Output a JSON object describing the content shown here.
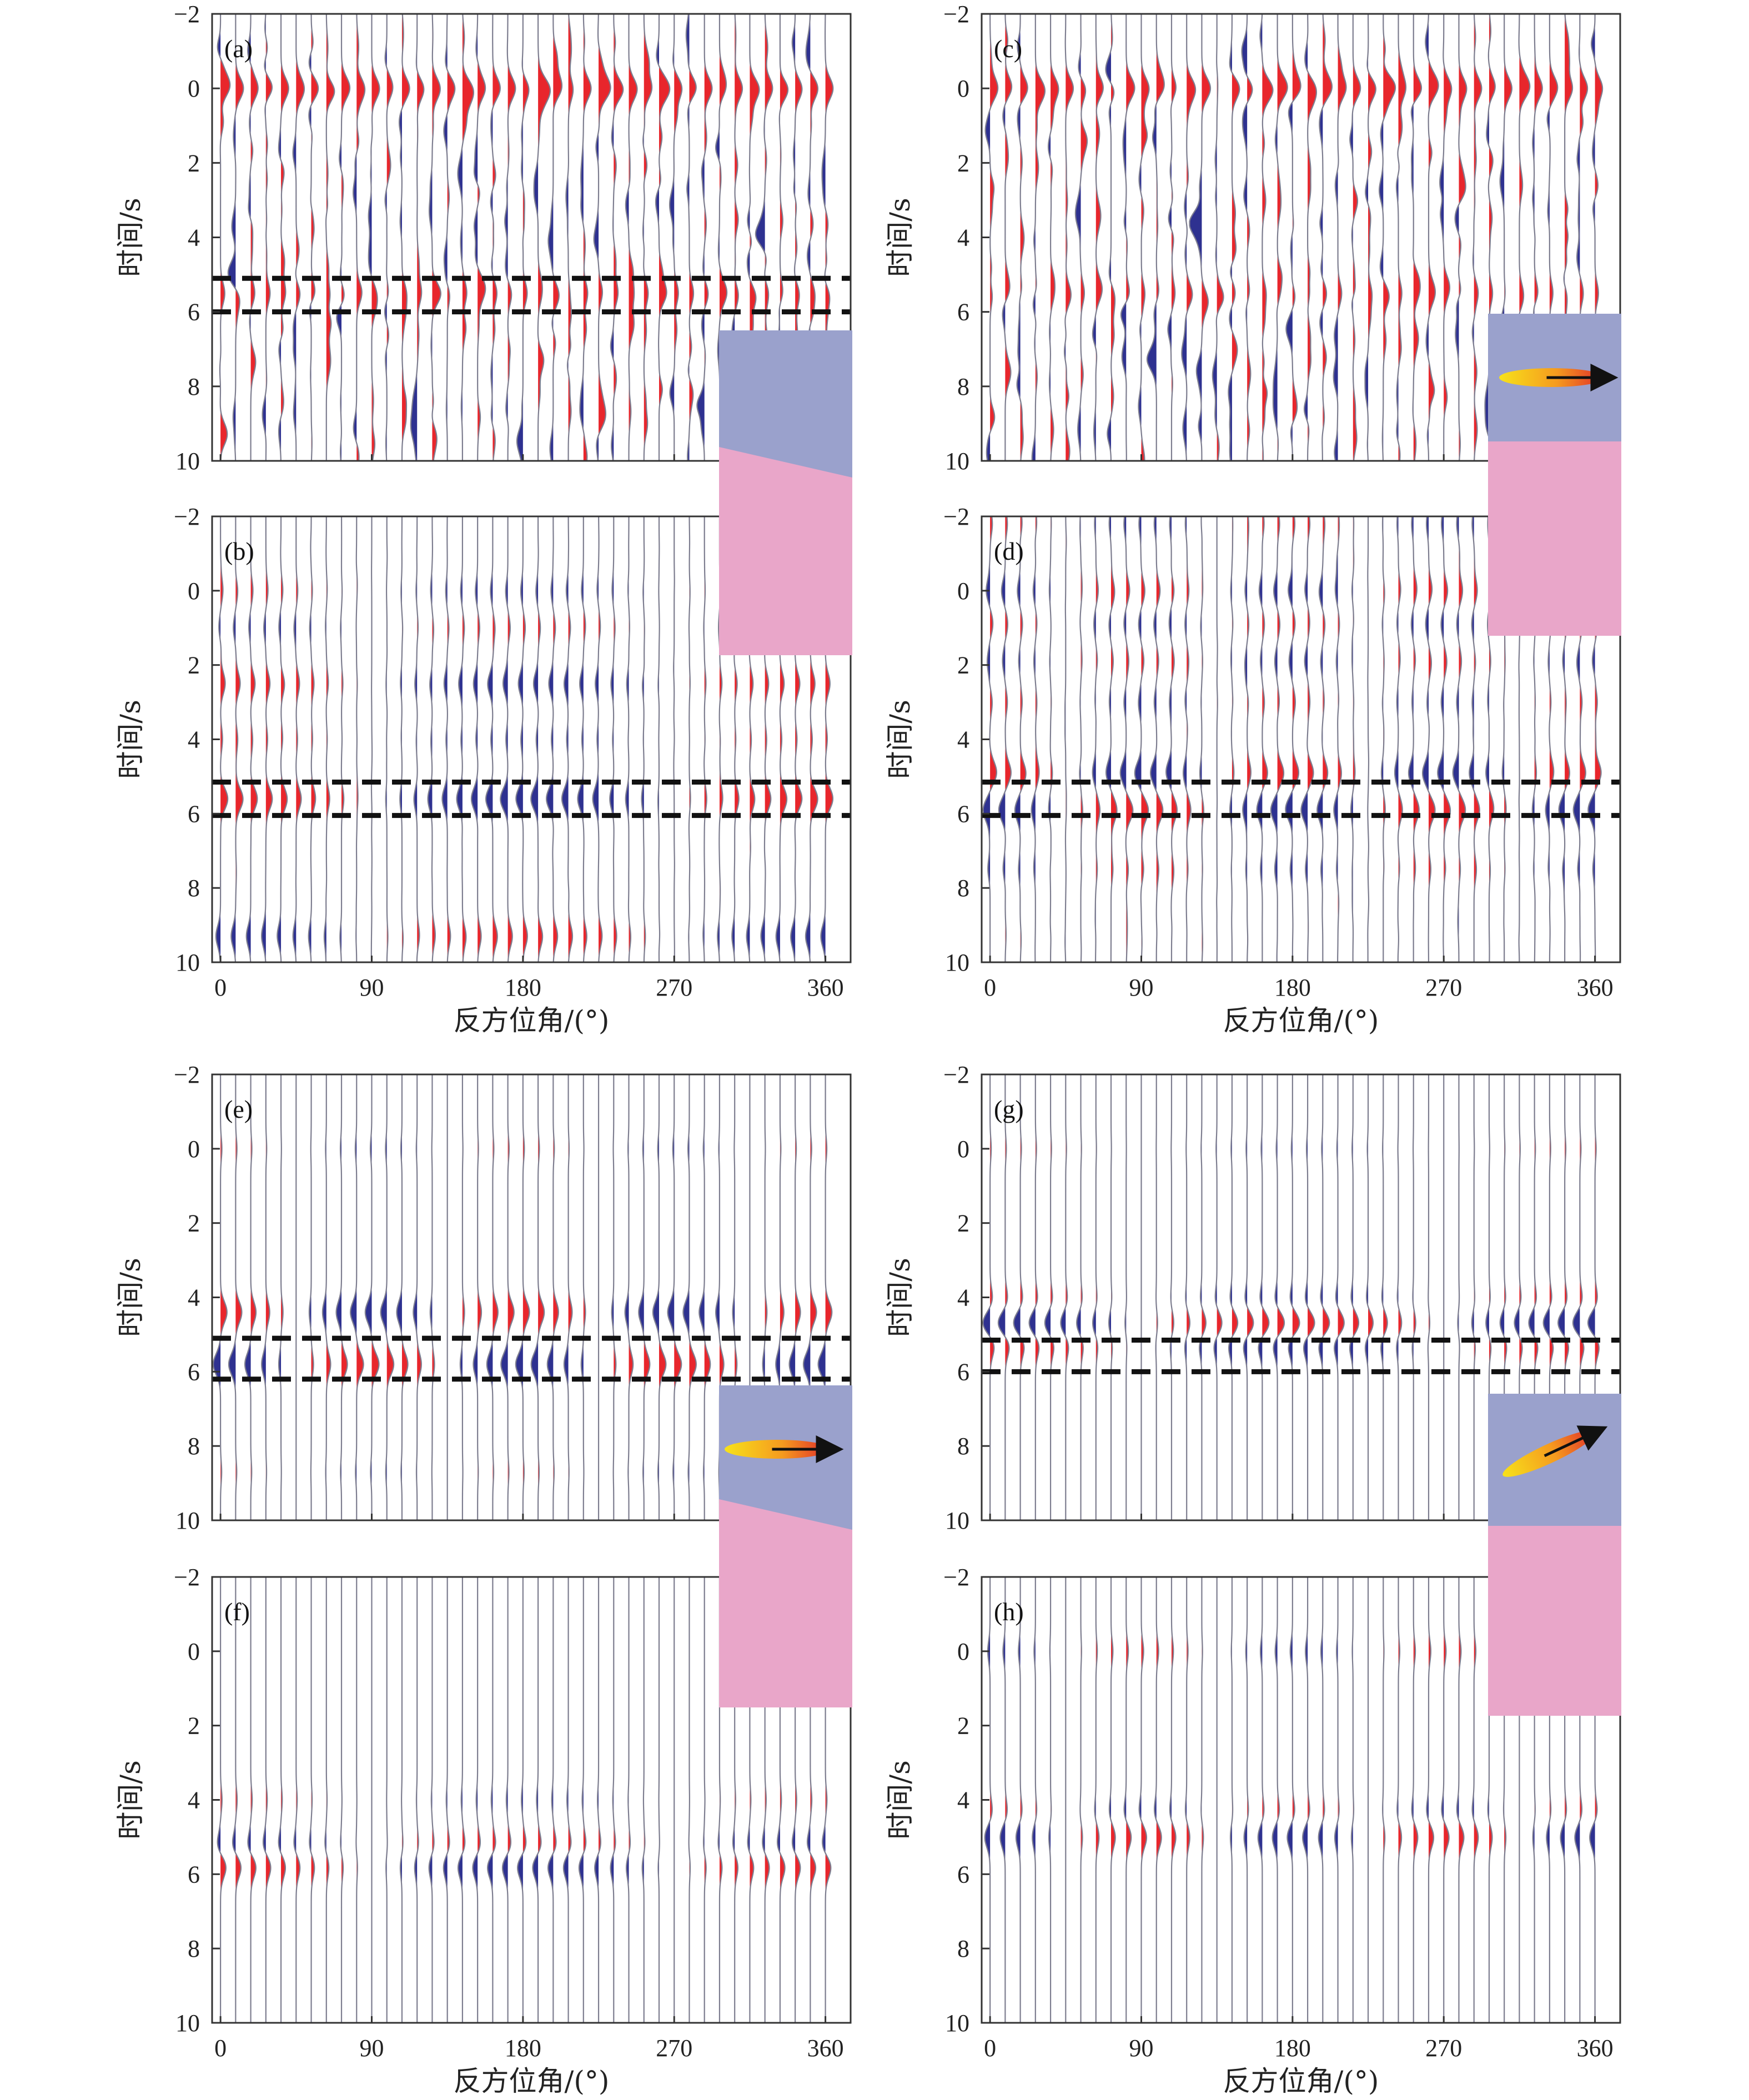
{
  "colors": {
    "positive": "#e8262c",
    "negative": "#2e3190",
    "upper_layer": "#9aa1cc",
    "lower_layer": "#e9a6c9",
    "ellipse_inner": "#e8262c",
    "ellipse_outer": "#f7d21a"
  },
  "axis_labels": {
    "y": "时间/s",
    "x": "反方位角/(°)"
  },
  "chart_data": {
    "type": "seismogram",
    "xlabel": "反方位角/(°)",
    "ylabel": "时间/s",
    "xlim": [
      -5,
      375
    ],
    "ylim": [
      10,
      -2
    ],
    "yticks": [
      "−2",
      "0",
      "2",
      "4",
      "6",
      "8",
      "10"
    ],
    "xticks": [
      "0",
      "90",
      "180",
      "270",
      "360"
    ],
    "trace_spacing_deg": 9,
    "panels": [
      {
        "label": "(a)",
        "window_s": [
          5.1,
          6.0
        ],
        "arrivals": [
          {
            "t": 0.0,
            "amp": 1.0,
            "pattern": "allpos"
          },
          {
            "t": 5.5,
            "amp": 0.55,
            "pattern": "allpos"
          }
        ],
        "noise": 0.45,
        "inset": "dipping-interface"
      },
      {
        "label": "(b)",
        "window_s": [
          5.15,
          6.05
        ],
        "arrivals": [
          {
            "t": 5.6,
            "amp": 0.95,
            "pattern": "cos1"
          },
          {
            "t": 2.5,
            "amp": 0.6,
            "pattern": "cos1"
          },
          {
            "t": 9.3,
            "amp": 0.6,
            "pattern": "cos1neg"
          },
          {
            "t": 0.0,
            "amp": 0.3,
            "pattern": "cos1"
          },
          {
            "t": 1.0,
            "amp": 0.3,
            "pattern": "cos1neg"
          },
          {
            "t": 4.0,
            "amp": 0.25,
            "pattern": "cos1"
          }
        ],
        "noise": 0.05
      },
      {
        "label": "(c)",
        "window_s": [],
        "arrivals": [
          {
            "t": 0.0,
            "amp": 1.0,
            "pattern": "allpos"
          },
          {
            "t": 5.5,
            "amp": 0.45,
            "pattern": "allpos"
          }
        ],
        "noise": 0.5,
        "inset": "horizontal-anisotropy"
      },
      {
        "label": "(d)",
        "window_s": [
          5.15,
          6.05
        ],
        "arrivals": [
          {
            "t": 4.9,
            "amp": 0.8,
            "pattern": "cos2"
          },
          {
            "t": 5.9,
            "amp": 0.9,
            "pattern": "cos2neg"
          },
          {
            "t": 0.0,
            "amp": 0.5,
            "pattern": "cos2neg"
          },
          {
            "t": 0.9,
            "amp": 0.35,
            "pattern": "cos2"
          },
          {
            "t": 1.9,
            "amp": 0.35,
            "pattern": "cos2neg"
          },
          {
            "t": 3.0,
            "amp": 0.3,
            "pattern": "cos2"
          },
          {
            "t": -1.8,
            "amp": 0.3,
            "pattern": "cos2"
          },
          {
            "t": 7.5,
            "amp": 0.3,
            "pattern": "cos2neg"
          }
        ],
        "noise": 0.08
      },
      {
        "label": "(e)",
        "window_s": [
          5.1,
          6.2
        ],
        "arrivals": [
          {
            "t": 4.4,
            "amp": 0.85,
            "pattern": "cos2"
          },
          {
            "t": 5.8,
            "amp": 0.95,
            "pattern": "cos2neg"
          },
          {
            "t": 0.0,
            "amp": 0.18,
            "pattern": "cos2"
          },
          {
            "t": 8.7,
            "amp": 0.15,
            "pattern": "cos2"
          }
        ],
        "noise": 0.0,
        "inset": "dipping-interface-anisotropy"
      },
      {
        "label": "(f)",
        "window_s": [],
        "arrivals": [
          {
            "t": 5.8,
            "amp": 0.75,
            "pattern": "cos1"
          },
          {
            "t": 5.2,
            "amp": 0.45,
            "pattern": "cos1neg"
          },
          {
            "t": 4.0,
            "amp": 0.2,
            "pattern": "cos1"
          }
        ],
        "noise": 0.0
      },
      {
        "label": "(g)",
        "window_s": [
          5.15,
          6.0
        ],
        "arrivals": [
          {
            "t": 4.7,
            "amp": 1.0,
            "pattern": "cos1neg"
          },
          {
            "t": 5.3,
            "amp": 0.6,
            "pattern": "cos1"
          },
          {
            "t": 4.05,
            "amp": 0.35,
            "pattern": "cos1"
          },
          {
            "t": 0.0,
            "amp": 0.15,
            "pattern": "cos1"
          }
        ],
        "noise": 0.0,
        "inset": "plunging-anisotropy"
      },
      {
        "label": "(h)",
        "window_s": [],
        "arrivals": [
          {
            "t": 5.0,
            "amp": 0.7,
            "pattern": "cos2neg"
          },
          {
            "t": 4.3,
            "amp": 0.3,
            "pattern": "cos2"
          },
          {
            "t": 0.0,
            "amp": 0.3,
            "pattern": "cos2neg"
          }
        ],
        "noise": 0.0
      }
    ]
  }
}
